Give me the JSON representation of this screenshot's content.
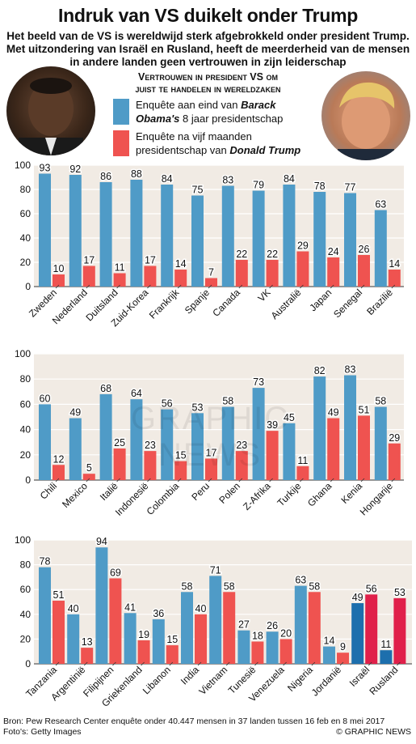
{
  "title": "Indruk van VS duikelt onder Trump",
  "subtitle": "Het beeld van de VS is wereldwijd sterk afgebrokkeld onder president Trump. Met uitzondering van Israël en Rusland, heeft de meerderheid van de mensen in andere landen geen vertrouwen in zijn leiderschap",
  "legend": {
    "title_line1": "Vertrouwen in president VS om",
    "title_line2": "juist te handelen in wereldzaken",
    "obama_pre": "Enquête aan eind van ",
    "obama_name": "Barack Obama's",
    "obama_post": " 8 jaar presidentschap",
    "trump_pre": "Enquête na vijf maanden presidentschap van ",
    "trump_name": "Donald Trump"
  },
  "colors": {
    "obama": "#4f9bc7",
    "trump": "#ef5350",
    "obama_dark": "#1d6fad",
    "trump_dark": "#e0204a",
    "bg_chart": "#f1ebe4"
  },
  "chart_data": [
    {
      "type": "bar",
      "categories": [
        "Zweden",
        "Nederland",
        "Duitsland",
        "Zuid-Korea",
        "Frankrijk",
        "Spanje",
        "Canada",
        "VK",
        "Australië",
        "Japan",
        "Senegal",
        "Brazilië"
      ],
      "series": [
        {
          "name": "Enquête aan eind van Barack Obama's 8 jaar presidentschap",
          "values": [
            93,
            92,
            86,
            88,
            84,
            75,
            83,
            79,
            84,
            78,
            77,
            63
          ]
        },
        {
          "name": "Enquête na vijf maanden presidentschap van Donald Trump",
          "values": [
            10,
            17,
            11,
            17,
            14,
            7,
            22,
            22,
            29,
            24,
            26,
            14
          ]
        }
      ],
      "ylim": [
        0,
        100
      ],
      "yticks": [
        0,
        20,
        40,
        60,
        80,
        100
      ],
      "grid": true
    },
    {
      "type": "bar",
      "categories": [
        "Chili",
        "Mexico",
        "Italië",
        "Indonesië",
        "Colombia",
        "Peru",
        "Polen",
        "Z-Afrika",
        "Turkije",
        "Ghana",
        "Kenia",
        "Hongarije"
      ],
      "series": [
        {
          "name": "Enquête aan eind van Barack Obama's 8 jaar presidentschap",
          "values": [
            60,
            49,
            68,
            64,
            56,
            53,
            58,
            73,
            45,
            82,
            83,
            58
          ]
        },
        {
          "name": "Enquête na vijf maanden presidentschap van Donald Trump",
          "values": [
            12,
            5,
            25,
            23,
            15,
            17,
            23,
            39,
            11,
            49,
            51,
            29
          ]
        }
      ],
      "ylim": [
        0,
        100
      ],
      "yticks": [
        0,
        20,
        40,
        60,
        80,
        100
      ],
      "grid": true
    },
    {
      "type": "bar",
      "categories": [
        "Tanzania",
        "Argentinië",
        "Filipijnen",
        "Griekenland",
        "Libanon",
        "India",
        "Vietnam",
        "Tunesië",
        "Venezuela",
        "Nigeria",
        "Jordanië",
        "Israël",
        "Rusland"
      ],
      "series": [
        {
          "name": "Enquête aan eind van Barack Obama's 8 jaar presidentschap",
          "values": [
            78,
            40,
            94,
            41,
            36,
            58,
            71,
            27,
            26,
            63,
            14,
            49,
            11
          ]
        },
        {
          "name": "Enquête na vijf maanden presidentschap van Donald Trump",
          "values": [
            51,
            13,
            69,
            19,
            15,
            40,
            58,
            18,
            20,
            58,
            9,
            56,
            53
          ]
        }
      ],
      "highlight_categories": [
        "Israël",
        "Rusland"
      ],
      "ylim": [
        0,
        100
      ],
      "yticks": [
        0,
        20,
        40,
        60,
        80,
        100
      ],
      "grid": true
    }
  ],
  "watermark": "GRAPHIC NEWS",
  "source_line1": "Bron: Pew Research Center enquête onder 40.447 mensen in 37 landen tussen 16 feb en 8 mei 2017",
  "source_line2": "Foto's: Getty Images",
  "credit": "© GRAPHIC NEWS"
}
